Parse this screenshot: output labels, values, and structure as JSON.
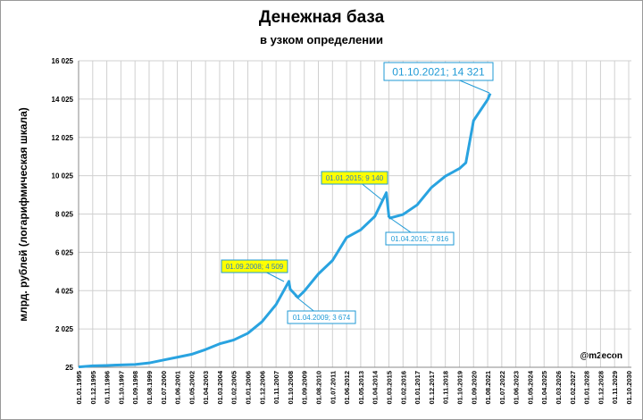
{
  "chart_data": {
    "type": "line",
    "title": "Денежная база",
    "subtitle": "в узком определении",
    "y_label": "млрд. рублей (логарифмическая шкала)",
    "credit": "@m2econ",
    "grid": true,
    "xlim": [
      "01.01.1995",
      "01.10.2030"
    ],
    "ylim": [
      25,
      16025
    ],
    "yticks": [
      25,
      {
        "value": 2025,
        "label": "2 025"
      },
      {
        "value": 4025,
        "label": "4 025"
      },
      {
        "value": 6025,
        "label": "6 025"
      },
      {
        "value": 8025,
        "label": "8 025"
      },
      {
        "value": 10025,
        "label": "10 025"
      },
      {
        "value": 12025,
        "label": "12 025"
      },
      {
        "value": 14025,
        "label": "14 025"
      },
      {
        "value": 16025,
        "label": "16 025"
      }
    ],
    "xticks": [
      "01.01.1995",
      "01.12.1995",
      "01.11.1996",
      "01.10.1997",
      "01.09.1998",
      "01.08.1999",
      "01.07.2000",
      "01.06.2001",
      "01.05.2002",
      "01.04.2003",
      "01.03.2004",
      "01.02.2005",
      "01.01.2006",
      "01.12.2006",
      "01.11.2007",
      "01.10.2008",
      "01.09.2009",
      "01.08.2010",
      "01.07.2011",
      "01.06.2012",
      "01.05.2013",
      "01.04.2014",
      "01.03.2015",
      "01.02.2016",
      "01.01.2017",
      "01.12.2017",
      "01.11.2018",
      "01.10.2019",
      "01.09.2020",
      "01.08.2021",
      "01.07.2022",
      "01.06.2023",
      "01.05.2024",
      "01.04.2025",
      "01.03.2026",
      "01.02.2027",
      "01.01.2028",
      "01.12.2028",
      "01.11.2029",
      "01.10.2030"
    ],
    "x": [
      "01.01.1995",
      "01.12.1995",
      "01.11.1996",
      "01.10.1997",
      "01.09.1998",
      "01.08.1999",
      "01.07.2000",
      "01.06.2001",
      "01.05.2002",
      "01.04.2003",
      "01.03.2004",
      "01.02.2005",
      "01.01.2006",
      "01.12.2006",
      "01.11.2007",
      "01.09.2008",
      "01.10.2008",
      "01.04.2009",
      "01.09.2009",
      "01.08.2010",
      "01.07.2011",
      "01.06.2012",
      "01.05.2013",
      "01.04.2014",
      "01.01.2015",
      "01.03.2015",
      "01.04.2015",
      "01.02.2016",
      "01.01.2017",
      "01.12.2017",
      "01.11.2018",
      "01.10.2019",
      "01.03.2020",
      "01.09.2020",
      "01.08.2021",
      "01.10.2021"
    ],
    "series": [
      {
        "name": "Денежная база",
        "color": "#29a3e0",
        "values": [
          40,
          100,
          120,
          150,
          170,
          250,
          400,
          550,
          700,
          950,
          1250,
          1450,
          1800,
          2400,
          3300,
          4509,
          4100,
          3674,
          4000,
          4900,
          5600,
          6800,
          7200,
          7900,
          9140,
          7900,
          7816,
          8000,
          8500,
          9400,
          10000,
          10400,
          10700,
          12900,
          14000,
          14321
        ]
      }
    ],
    "annotations": [
      "01.10.2021; 14 321",
      "01.01.2015; 9 140",
      "01.04.2015; 7 816",
      "01.09.2008; 4 509",
      "01.04.2009; 3 674"
    ]
  }
}
